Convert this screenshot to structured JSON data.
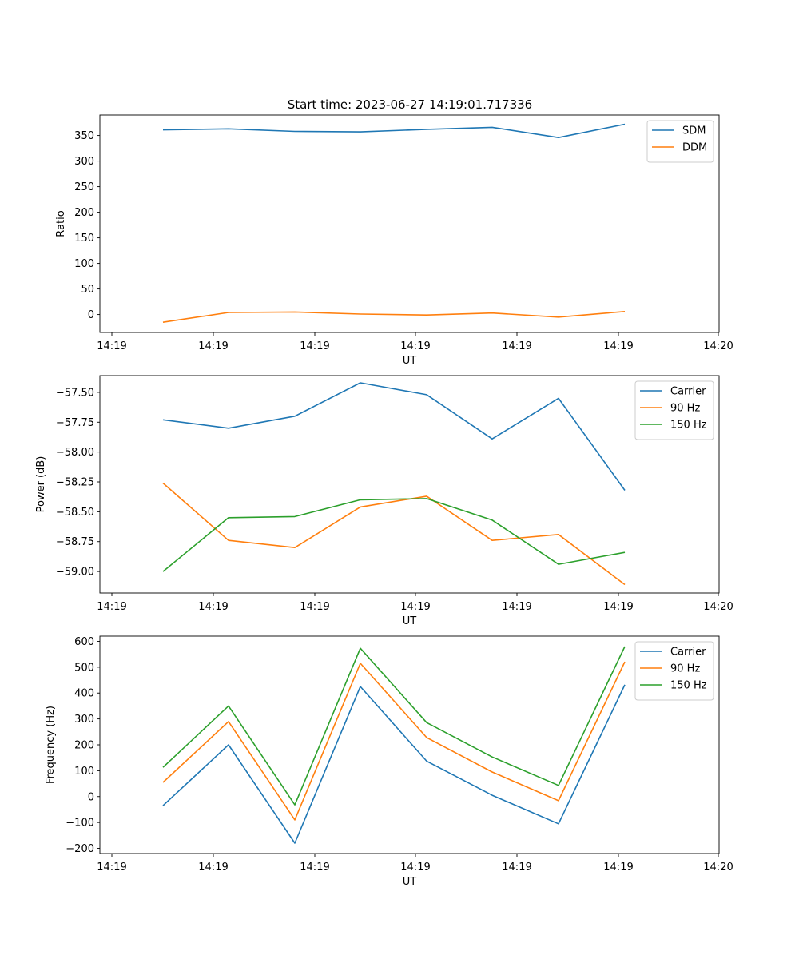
{
  "figure": {
    "title": "Start time: 2023-06-27 14:19:01.717336"
  },
  "chart_data": [
    {
      "type": "line",
      "xlabel": "UT",
      "ylabel": "Ratio",
      "x_tick_labels": [
        "14:19",
        "14:19",
        "14:19",
        "14:19",
        "14:19",
        "14:19",
        "14:20"
      ],
      "yticks": [
        0,
        50,
        100,
        150,
        200,
        250,
        300,
        350
      ],
      "ylim": [
        -35,
        390
      ],
      "legend": "top-right",
      "grid": false,
      "series": [
        {
          "name": "SDM",
          "color": "#1f77b4",
          "values": [
            361,
            363,
            358,
            357,
            362,
            366,
            346,
            372
          ]
        },
        {
          "name": "DDM",
          "color": "#ff7f0e",
          "values": [
            -15,
            4,
            5,
            1,
            -1,
            3,
            -5,
            6
          ]
        }
      ]
    },
    {
      "type": "line",
      "xlabel": "UT",
      "ylabel": "Power (dB)",
      "x_tick_labels": [
        "14:19",
        "14:19",
        "14:19",
        "14:19",
        "14:19",
        "14:19",
        "14:20"
      ],
      "yticks": [
        -59.0,
        -58.75,
        -58.5,
        -58.25,
        -58.0,
        -57.75,
        -57.5
      ],
      "ytick_labels": [
        "−59.00",
        "−58.75",
        "−58.50",
        "−58.25",
        "−58.00",
        "−57.75",
        "−57.50"
      ],
      "ylim": [
        -59.18,
        -57.36
      ],
      "legend": "top-right",
      "grid": false,
      "series": [
        {
          "name": "Carrier",
          "color": "#1f77b4",
          "values": [
            -57.73,
            -57.8,
            -57.7,
            -57.42,
            -57.52,
            -57.89,
            -57.55,
            -58.32
          ]
        },
        {
          "name": "90 Hz",
          "color": "#ff7f0e",
          "values": [
            -58.26,
            -58.74,
            -58.8,
            -58.46,
            -58.37,
            -58.74,
            -58.69,
            -59.11
          ]
        },
        {
          "name": "150 Hz",
          "color": "#2ca02c",
          "values": [
            -59.0,
            -58.55,
            -58.54,
            -58.4,
            -58.39,
            -58.57,
            -58.94,
            -58.84
          ]
        }
      ]
    },
    {
      "type": "line",
      "xlabel": "UT",
      "ylabel": "Frequency (Hz)",
      "x_tick_labels": [
        "14:19",
        "14:19",
        "14:19",
        "14:19",
        "14:19",
        "14:19",
        "14:20"
      ],
      "yticks": [
        -200,
        -100,
        0,
        100,
        200,
        300,
        400,
        500,
        600
      ],
      "ytick_labels": [
        "−200",
        "−100",
        "0",
        "100",
        "200",
        "300",
        "400",
        "500",
        "600"
      ],
      "ylim": [
        -220,
        620
      ],
      "legend": "top-right",
      "grid": false,
      "series": [
        {
          "name": "Carrier",
          "color": "#1f77b4",
          "values": [
            -35,
            200,
            -180,
            425,
            137,
            5,
            -105,
            432
          ]
        },
        {
          "name": "90 Hz",
          "color": "#ff7f0e",
          "values": [
            55,
            290,
            -90,
            515,
            228,
            95,
            -16,
            521
          ]
        },
        {
          "name": "150 Hz",
          "color": "#2ca02c",
          "values": [
            113,
            350,
            -32,
            573,
            286,
            153,
            43,
            580
          ]
        }
      ]
    }
  ]
}
